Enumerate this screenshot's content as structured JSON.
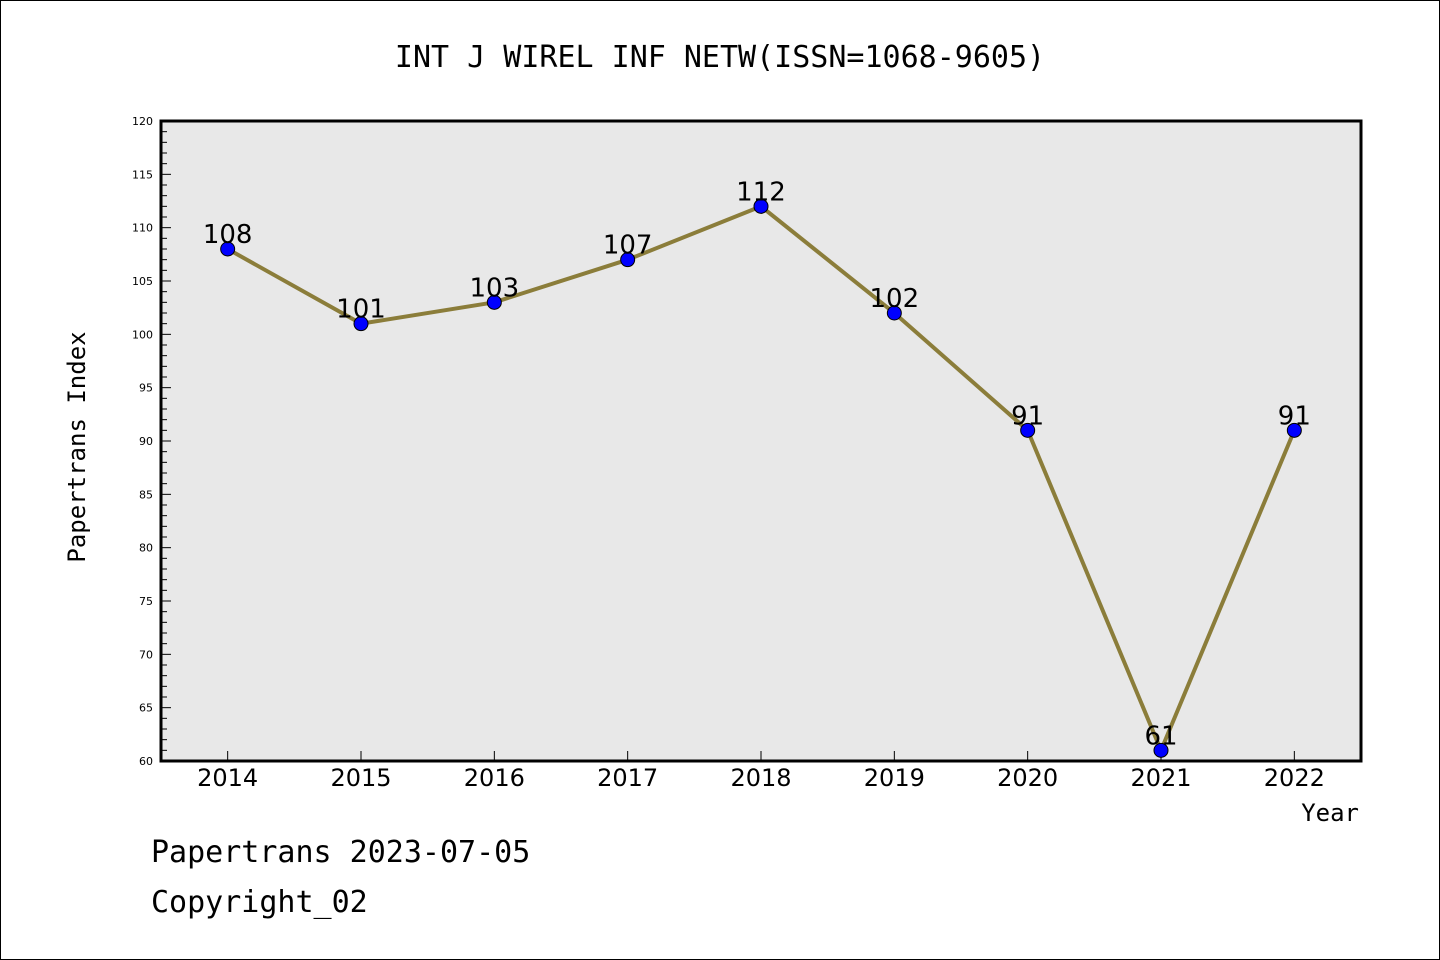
{
  "chart_data": {
    "type": "line",
    "title": "INT J WIREL INF NETW(ISSN=1068-9605)",
    "xlabel": "Year",
    "ylabel": "Papertrans Index",
    "categories": [
      "2014",
      "2015",
      "2016",
      "2017",
      "2018",
      "2019",
      "2020",
      "2021",
      "2022"
    ],
    "values": [
      108,
      101,
      103,
      107,
      112,
      102,
      91,
      61,
      91
    ],
    "data_labels": [
      "108",
      "101",
      "103",
      "107",
      "112",
      "102",
      "91",
      "61",
      "91"
    ],
    "ylim": [
      60,
      120
    ],
    "yticks": [
      60,
      65,
      70,
      75,
      80,
      85,
      90,
      95,
      100,
      105,
      110,
      115,
      120
    ],
    "ytick_labels": [
      "60",
      "65",
      "70",
      "75",
      "80",
      "85",
      "90",
      "95",
      "100",
      "105",
      "110",
      "115",
      "120"
    ],
    "grid": false,
    "line_color": "#8b7d3a",
    "marker_color": "#0000ff",
    "plot_background": "#e8e8e8"
  },
  "footer": {
    "date_line": "Papertrans 2023-07-05",
    "copyright_line": "Copyright_02"
  }
}
